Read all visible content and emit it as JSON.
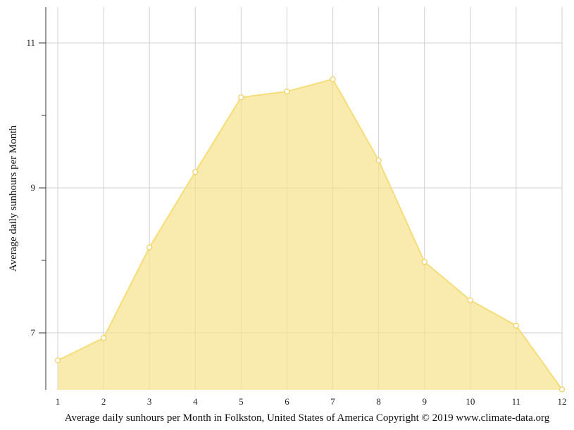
{
  "chart_data": {
    "type": "area",
    "x": [
      1,
      2,
      3,
      4,
      5,
      6,
      7,
      8,
      9,
      10,
      11,
      12
    ],
    "series": [
      {
        "values": [
          6.62,
          6.93,
          8.18,
          9.22,
          10.25,
          10.33,
          10.5,
          9.38,
          7.98,
          7.45,
          7.1,
          6.22
        ]
      }
    ],
    "xlabel": "",
    "ylabel": "Average daily sunhours per Month",
    "caption": "Average daily sunhours per Month in Folkston, United States of America Copyright © 2019 www.climate-data.org",
    "y_ticks": [
      7,
      9,
      11
    ],
    "ylim": [
      6.2,
      11.5
    ],
    "xlim": [
      1,
      12
    ],
    "grid": true,
    "colors": {
      "fill": "#f7e38a",
      "line": "#f5dd7a",
      "marker_fill": "#ffffff"
    }
  }
}
